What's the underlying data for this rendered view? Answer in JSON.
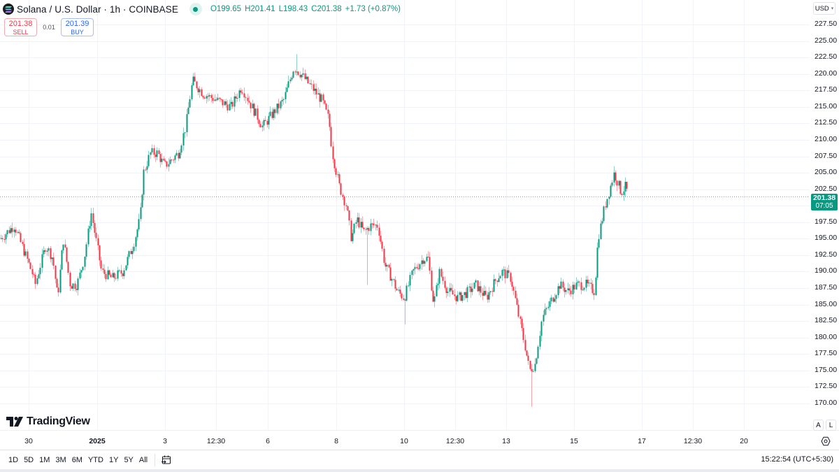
{
  "header": {
    "symbol_title": "Solana / U.S. Dollar · 1h · COINBASE",
    "status": "market-open",
    "ohlc": {
      "open_label": "O",
      "open": "199.65",
      "high_label": "H",
      "high": "201.41",
      "low_label": "L",
      "low": "198.43",
      "close_label": "C",
      "close": "201.38",
      "change": "+1.73 (+0.87%)"
    }
  },
  "trade": {
    "sell_price": "201.38",
    "sell_label": "SELL",
    "spread": "0.01",
    "buy_price": "201.39",
    "buy_label": "BUY"
  },
  "price_scale": {
    "currency": "USD",
    "labels": [
      "227.50",
      "225.00",
      "222.50",
      "220.00",
      "217.50",
      "215.00",
      "212.50",
      "210.00",
      "207.50",
      "205.00",
      "202.50",
      "197.50",
      "195.00",
      "192.50",
      "190.00",
      "187.50",
      "185.00",
      "182.50",
      "180.00",
      "177.50",
      "175.00",
      "172.50",
      "170.00"
    ],
    "current_price": "201.38",
    "countdown": "07:05",
    "auto_label": "A",
    "log_label": "L"
  },
  "time_scale": {
    "labels": [
      {
        "text": "30",
        "x": 41,
        "bold": false
      },
      {
        "text": "2025",
        "x": 139,
        "bold": true
      },
      {
        "text": "3",
        "x": 236,
        "bold": false
      },
      {
        "text": "12:30",
        "x": 309,
        "bold": false
      },
      {
        "text": "6",
        "x": 383,
        "bold": false
      },
      {
        "text": "8",
        "x": 481,
        "bold": false
      },
      {
        "text": "10",
        "x": 578,
        "bold": false
      },
      {
        "text": "12:30",
        "x": 651,
        "bold": false
      },
      {
        "text": "13",
        "x": 724,
        "bold": false
      },
      {
        "text": "15",
        "x": 821,
        "bold": false
      },
      {
        "text": "17",
        "x": 918,
        "bold": false
      },
      {
        "text": "12:30",
        "x": 991,
        "bold": false
      },
      {
        "text": "20",
        "x": 1064,
        "bold": false
      }
    ]
  },
  "branding": {
    "wordmark": "TradingView"
  },
  "bottom_bar": {
    "ranges": [
      "1D",
      "5D",
      "1M",
      "3M",
      "6M",
      "YTD",
      "1Y",
      "5Y",
      "All"
    ],
    "clock": "15:22:54 (UTC+5:30)"
  },
  "colors": {
    "up": "#089981",
    "down": "#F23645",
    "grid": "#f0f3fa",
    "price_line": "#089981"
  },
  "chart_data": {
    "type": "candlestick",
    "title": "Solana / U.S. Dollar · 1h · COINBASE",
    "xlabel": "",
    "ylabel": "USD",
    "ylim": [
      168.5,
      229
    ],
    "y_ticks": [
      170,
      172.5,
      175,
      177.5,
      180,
      182.5,
      185,
      187.5,
      190,
      192.5,
      195,
      197.5,
      200,
      202.5,
      205,
      207.5,
      210,
      212.5,
      215,
      217.5,
      220,
      222.5,
      225,
      227.5
    ],
    "x_ticks": [
      "30",
      "2025",
      "3",
      "12:30",
      "6",
      "8",
      "10",
      "12:30",
      "13",
      "15",
      "17",
      "12:30",
      "20"
    ],
    "grid": true,
    "last": {
      "open": 199.65,
      "high": 201.41,
      "low": 198.43,
      "close": 201.38,
      "change": 1.73,
      "change_pct": 0.87
    },
    "notable": {
      "period_high": 223.0,
      "period_low": 169.5
    },
    "close_path": [
      [
        0,
        195
      ],
      [
        20,
        197
      ],
      [
        45,
        190
      ],
      [
        50,
        188
      ],
      [
        65,
        194
      ],
      [
        75,
        192
      ],
      [
        82,
        186
      ],
      [
        90,
        195
      ],
      [
        100,
        188
      ],
      [
        110,
        188
      ],
      [
        120,
        192
      ],
      [
        130,
        199
      ],
      [
        145,
        190
      ],
      [
        160,
        189
      ],
      [
        175,
        190
      ],
      [
        190,
        194
      ],
      [
        200,
        198
      ],
      [
        205,
        205
      ],
      [
        215,
        208
      ],
      [
        225,
        208
      ],
      [
        235,
        206
      ],
      [
        255,
        208
      ],
      [
        265,
        212
      ],
      [
        272,
        217
      ],
      [
        275,
        219
      ],
      [
        290,
        217
      ],
      [
        310,
        216
      ],
      [
        330,
        215
      ],
      [
        345,
        218
      ],
      [
        355,
        216
      ],
      [
        375,
        212
      ],
      [
        390,
        214
      ],
      [
        405,
        216
      ],
      [
        420,
        221
      ],
      [
        430,
        220
      ],
      [
        445,
        218
      ],
      [
        460,
        216
      ],
      [
        470,
        213
      ],
      [
        475,
        208
      ],
      [
        485,
        203
      ],
      [
        495,
        200
      ],
      [
        502,
        195
      ],
      [
        510,
        198
      ],
      [
        520,
        196
      ],
      [
        530,
        197
      ],
      [
        540,
        197
      ],
      [
        550,
        191
      ],
      [
        560,
        189
      ],
      [
        568,
        187
      ],
      [
        578,
        186
      ],
      [
        590,
        190
      ],
      [
        605,
        192
      ],
      [
        612,
        192
      ],
      [
        620,
        185
      ],
      [
        628,
        190
      ],
      [
        640,
        187
      ],
      [
        655,
        186
      ],
      [
        670,
        187
      ],
      [
        680,
        188
      ],
      [
        695,
        186
      ],
      [
        710,
        189
      ],
      [
        718,
        190
      ],
      [
        730,
        189
      ],
      [
        740,
        184
      ],
      [
        750,
        179
      ],
      [
        757,
        175
      ],
      [
        765,
        176
      ],
      [
        775,
        183
      ],
      [
        790,
        186
      ],
      [
        800,
        188
      ],
      [
        812,
        187
      ],
      [
        825,
        188
      ],
      [
        838,
        188
      ],
      [
        850,
        187
      ],
      [
        855,
        195
      ],
      [
        865,
        200
      ],
      [
        878,
        205
      ],
      [
        888,
        202
      ],
      [
        895,
        203
      ],
      [
        898,
        201.38
      ]
    ],
    "wick_spikes": [
      {
        "x": 423,
        "high": 223.0
      },
      {
        "x": 524,
        "low": 188.0
      },
      {
        "x": 579,
        "low": 182.0
      },
      {
        "x": 760,
        "low": 169.5
      },
      {
        "x": 877,
        "high": 206.0
      }
    ]
  }
}
